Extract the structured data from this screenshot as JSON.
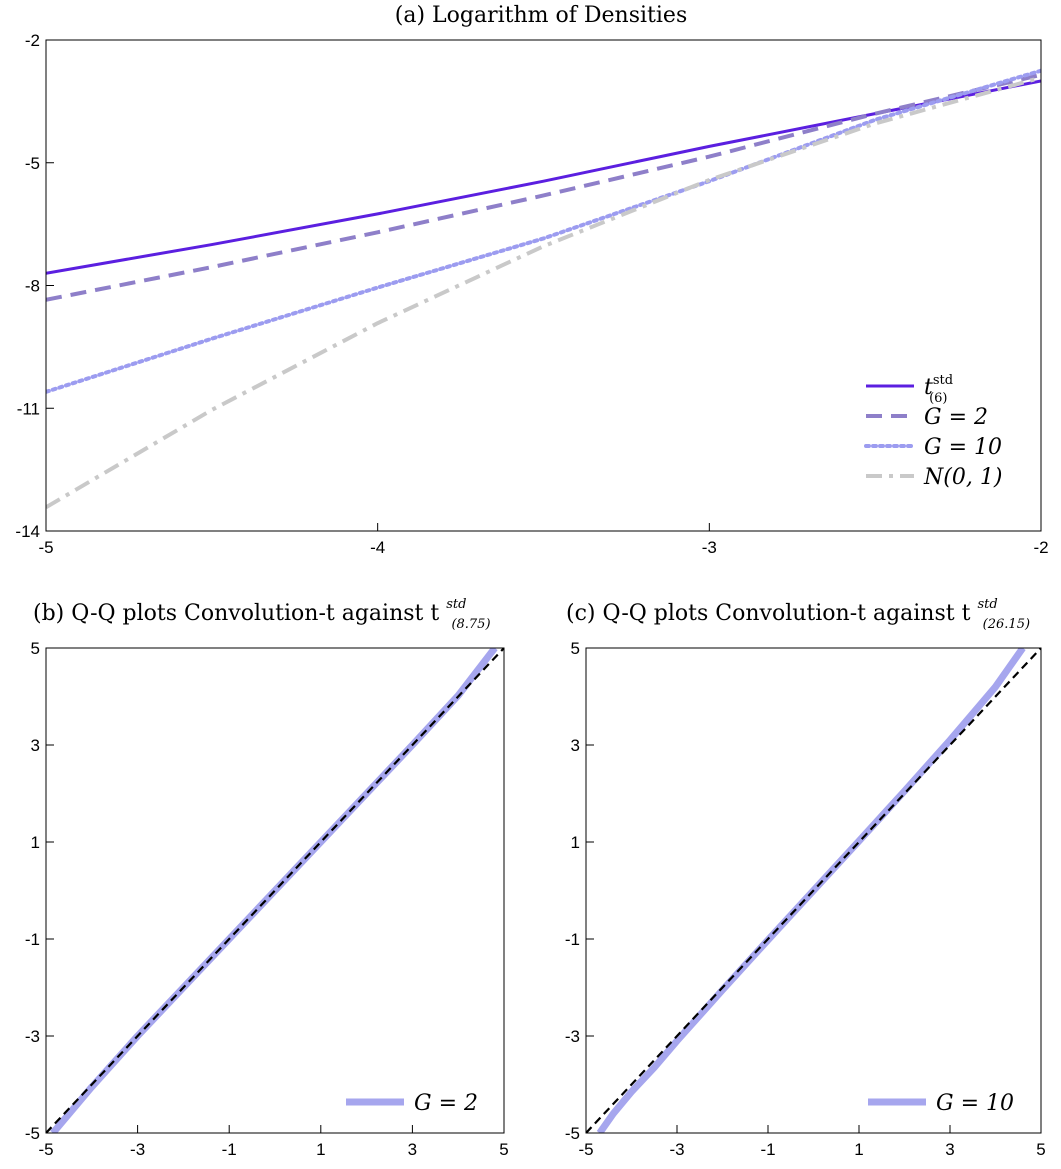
{
  "chart_data": [
    {
      "id": "a",
      "type": "line",
      "title": "(a) Logarithm of Densities",
      "xlim": [
        -5,
        -2
      ],
      "ylim": [
        -14,
        -2
      ],
      "xticks": [
        -5,
        -4,
        -3,
        -2
      ],
      "yticks": [
        -2,
        -5,
        -8,
        -11,
        -14
      ],
      "grid": false,
      "legend_position": "bottom-right",
      "series": [
        {
          "name": "t_(6)^std",
          "legend_base": "t",
          "legend_sup": "std",
          "legend_sub": "(6)",
          "color": "#5b1fe0",
          "style": "solid",
          "x": [
            -5.0,
            -4.5,
            -4.0,
            -3.5,
            -3.0,
            -2.5,
            -2.0
          ],
          "y": [
            -7.7,
            -7.0,
            -6.25,
            -5.45,
            -4.6,
            -3.8,
            -3.0
          ]
        },
        {
          "name": "G = 2",
          "legend_base": "G = 2",
          "color": "#8e7fc9",
          "style": "dashed",
          "x": [
            -5.0,
            -4.5,
            -4.0,
            -3.5,
            -3.0,
            -2.5,
            -2.0
          ],
          "y": [
            -8.35,
            -7.55,
            -6.7,
            -5.8,
            -4.85,
            -3.8,
            -2.85
          ]
        },
        {
          "name": "G = 10",
          "legend_base": "G = 10",
          "color": "#9c9cf0",
          "style": "dotted",
          "x": [
            -5.0,
            -4.5,
            -4.0,
            -3.5,
            -3.0,
            -2.5,
            -2.0
          ],
          "y": [
            -10.6,
            -9.3,
            -8.05,
            -6.85,
            -5.45,
            -3.95,
            -2.75
          ]
        },
        {
          "name": "N(0,1)",
          "legend_base": "N(0, 1)",
          "color": "#c9c9c9",
          "style": "dashdot",
          "x": [
            -5.0,
            -4.5,
            -4.0,
            -3.5,
            -3.0,
            -2.5,
            -2.0
          ],
          "y": [
            -13.42,
            -11.04,
            -8.92,
            -7.04,
            -5.42,
            -4.04,
            -2.92
          ]
        }
      ]
    },
    {
      "id": "b",
      "type": "line",
      "title": "(b) Q-Q plots Convolution-t against t",
      "title_sup": "std",
      "title_sub": "(8.75)",
      "xlim": [
        -5,
        5
      ],
      "ylim": [
        -5,
        5
      ],
      "xticks": [
        -5,
        -3,
        -1,
        1,
        3,
        5
      ],
      "yticks": [
        5,
        3,
        1,
        -1,
        -3,
        -5
      ],
      "grid": false,
      "legend_position": "bottom-right",
      "series": [
        {
          "name": "G = 2",
          "legend_base": "G = 2",
          "color": "#a6a6ee",
          "style": "thick",
          "x": [
            -4.85,
            -4.0,
            -3.0,
            -2.0,
            -1.0,
            0.0,
            1.0,
            2.0,
            3.0,
            4.0,
            4.8
          ],
          "y": [
            -5.0,
            -4.05,
            -3.0,
            -2.0,
            -1.0,
            0.0,
            1.0,
            2.0,
            3.0,
            4.02,
            5.0
          ]
        },
        {
          "name": "",
          "color": "#000000",
          "style": "refdash",
          "x": [
            -5,
            5
          ],
          "y": [
            -5,
            5
          ]
        }
      ]
    },
    {
      "id": "c",
      "type": "line",
      "title": "(c) Q-Q plots Convolution-t against t",
      "title_sup": "std",
      "title_sub": "(26.15)",
      "xlim": [
        -5,
        5
      ],
      "ylim": [
        -5,
        5
      ],
      "xticks": [
        -5,
        -3,
        -1,
        1,
        3,
        5
      ],
      "yticks": [
        5,
        3,
        1,
        -1,
        -3,
        -5
      ],
      "grid": false,
      "legend_position": "bottom-right",
      "series": [
        {
          "name": "G = 10",
          "legend_base": "G = 10",
          "color": "#a6a6ee",
          "style": "thick",
          "x": [
            -4.7,
            -4.4,
            -4.0,
            -3.5,
            -3.0,
            -2.0,
            -1.0,
            0.0,
            1.0,
            2.0,
            3.0,
            3.5,
            4.0,
            4.3,
            4.6
          ],
          "y": [
            -5.0,
            -4.6,
            -4.15,
            -3.65,
            -3.1,
            -2.05,
            -1.02,
            0.0,
            1.02,
            2.05,
            3.1,
            3.65,
            4.2,
            4.6,
            5.0
          ]
        },
        {
          "name": "",
          "color": "#000000",
          "style": "refdash",
          "x": [
            -5,
            5
          ],
          "y": [
            -5,
            5
          ]
        }
      ]
    }
  ]
}
